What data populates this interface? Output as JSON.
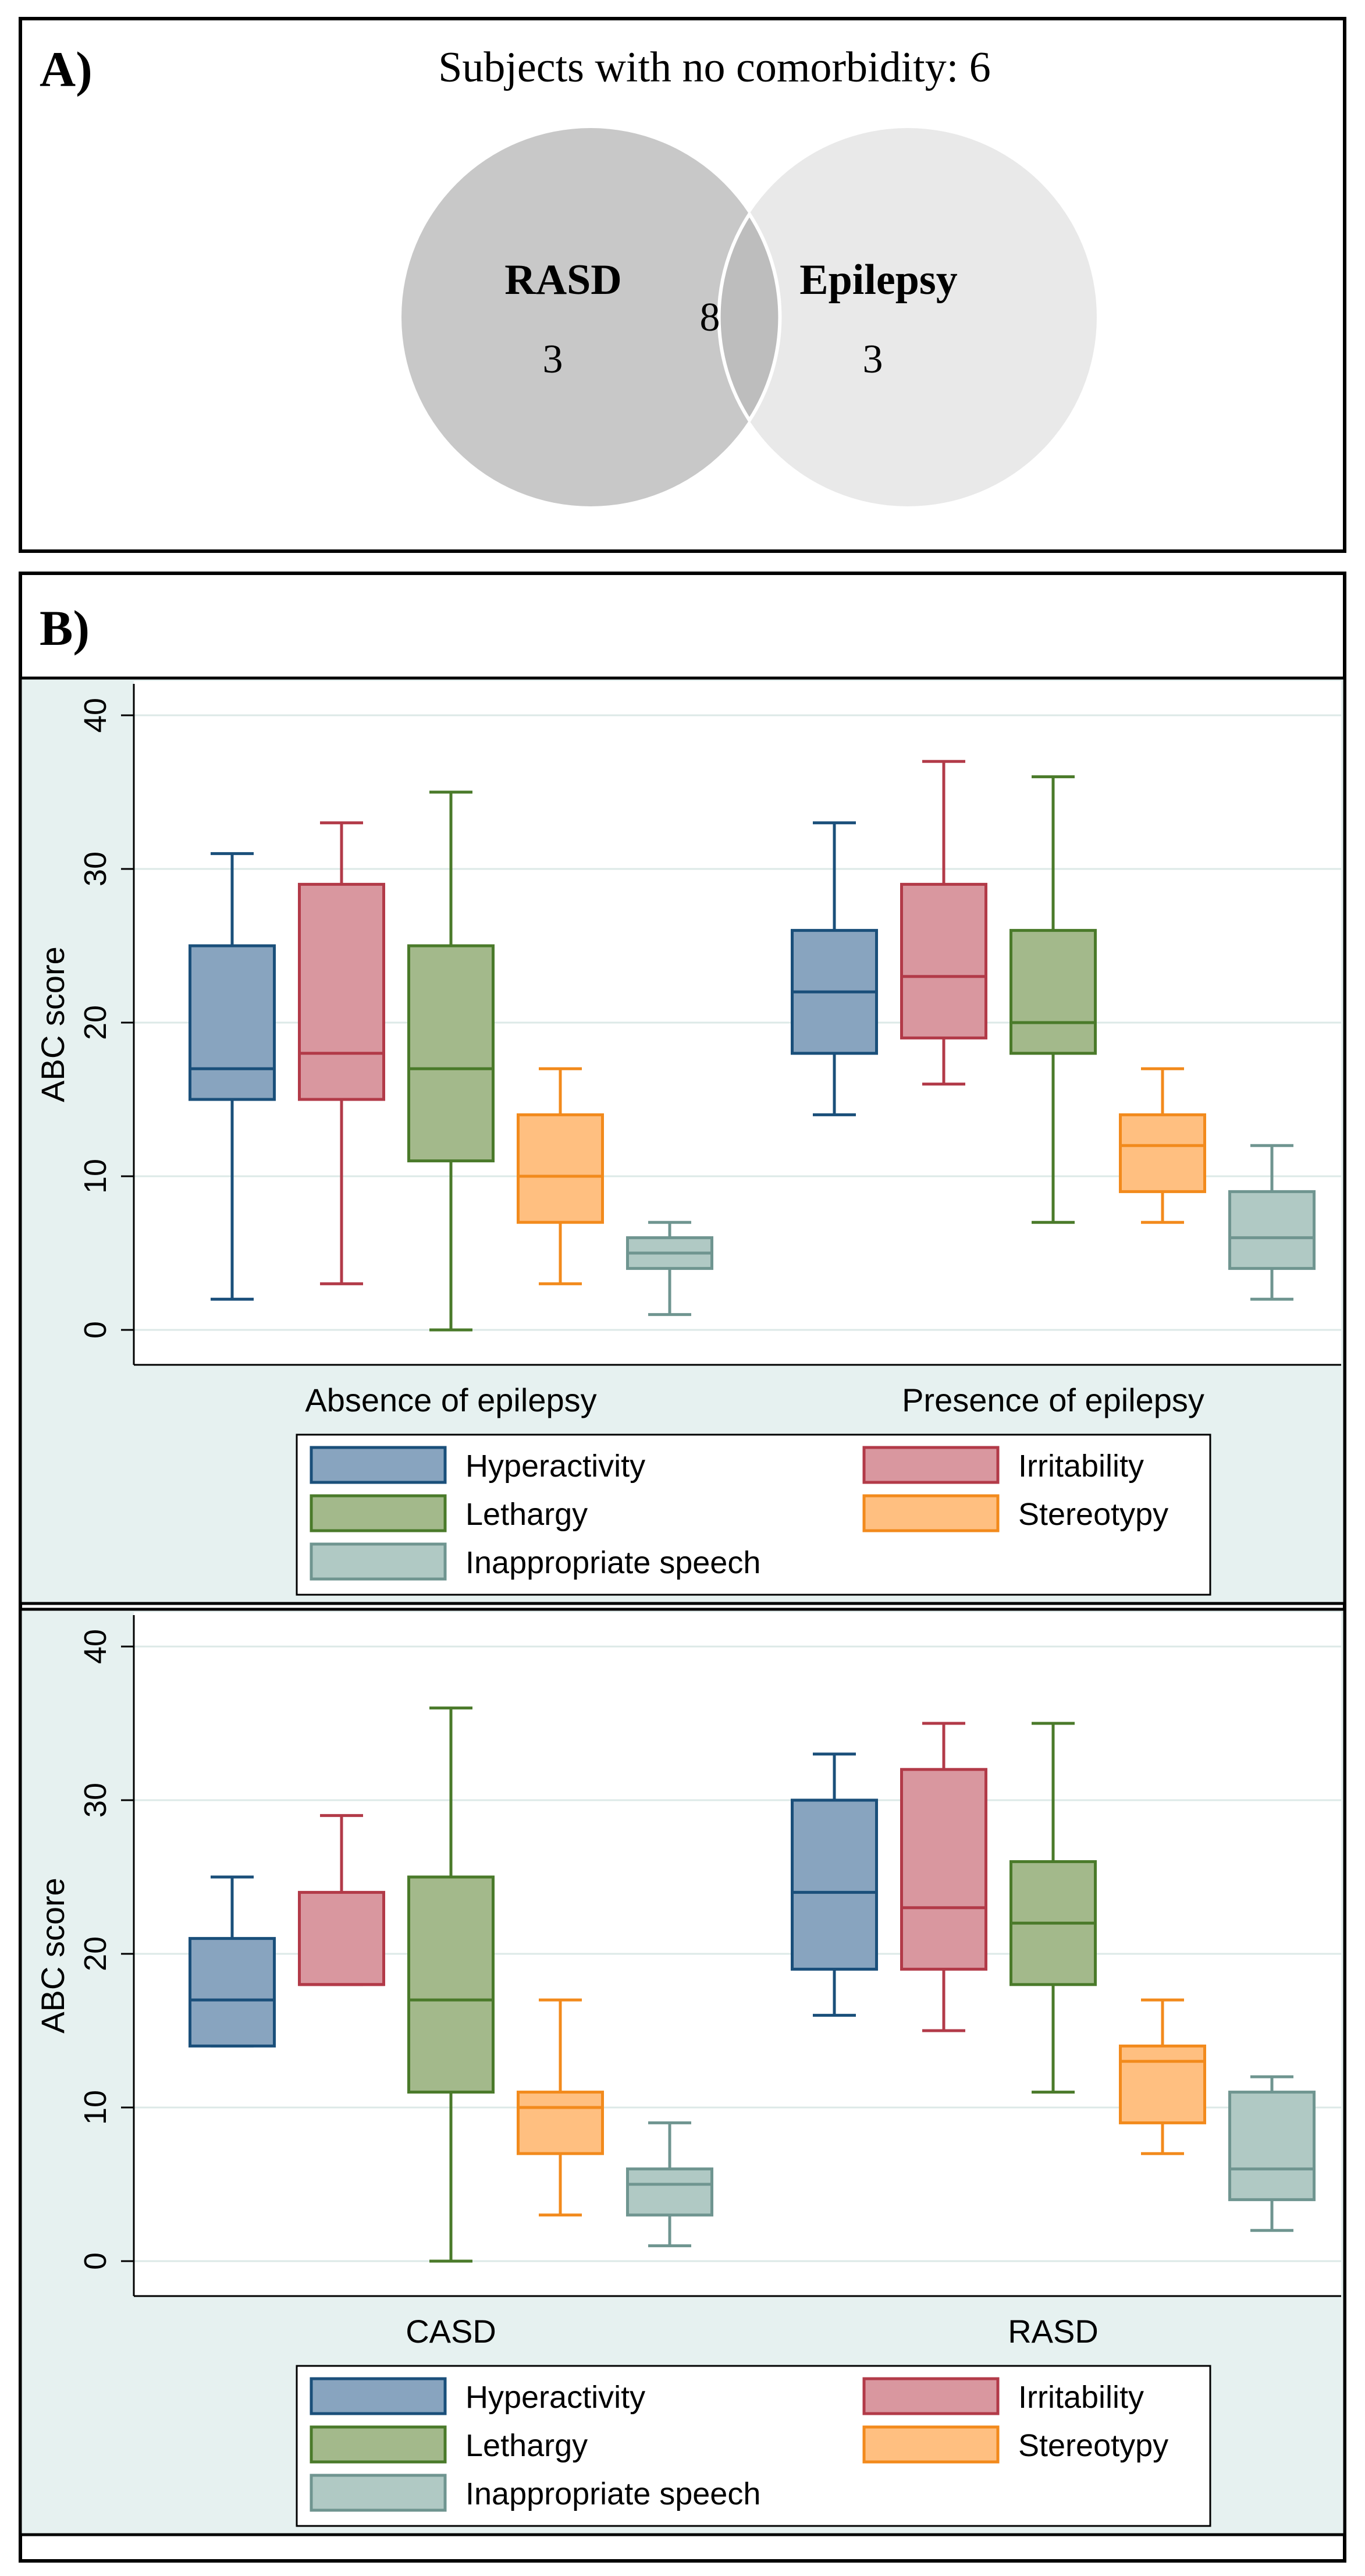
{
  "panel_a": {
    "label": "A)",
    "title": "Subjects with no comorbidity: 6",
    "sets": [
      {
        "name": "RASD",
        "only": "3",
        "color": "#c8c8c8"
      },
      {
        "name": "Epilepsy",
        "only": "3",
        "color": "#e9e9e9"
      }
    ],
    "overlap": "8"
  },
  "panel_b": {
    "label": "B)"
  },
  "legend": {
    "items": [
      {
        "name": "Hyperactivity",
        "fill": "#88a4bf",
        "stroke": "#1a4f7a"
      },
      {
        "name": "Irritability",
        "fill": "#d9979f",
        "stroke": "#b23a48"
      },
      {
        "name": "Lethargy",
        "fill": "#a3b98b",
        "stroke": "#4a7a2a"
      },
      {
        "name": "Stereotypy",
        "fill": "#ffbf80",
        "stroke": "#f28a1c"
      },
      {
        "name": "Inappropriate speech",
        "fill": "#b0c9c4",
        "stroke": "#6f9590"
      }
    ]
  },
  "chart_data": [
    {
      "type": "box",
      "ylabel": "ABC score",
      "ylim": [
        0,
        40
      ],
      "yticks": [
        "0",
        "10",
        "20",
        "30",
        "40"
      ],
      "categories": [
        "Absence of epilepsy",
        "Presence of epilepsy"
      ],
      "series": [
        {
          "name": "Hyperactivity",
          "boxes": [
            [
              2,
              15,
              17,
              25,
              31
            ],
            [
              14,
              18,
              22,
              26,
              33
            ]
          ]
        },
        {
          "name": "Irritability",
          "boxes": [
            [
              3,
              15,
              18,
              29,
              33
            ],
            [
              16,
              19,
              23,
              29,
              37
            ]
          ]
        },
        {
          "name": "Lethargy",
          "boxes": [
            [
              0,
              11,
              17,
              25,
              35
            ],
            [
              7,
              18,
              20,
              26,
              36
            ]
          ]
        },
        {
          "name": "Stereotypy",
          "boxes": [
            [
              3,
              7,
              10,
              14,
              17
            ],
            [
              7,
              9,
              12,
              14,
              17
            ]
          ]
        },
        {
          "name": "Inappropriate speech",
          "boxes": [
            [
              1,
              4,
              5,
              6,
              7
            ],
            [
              2,
              4,
              6,
              9,
              12
            ]
          ]
        }
      ]
    },
    {
      "type": "box",
      "ylabel": "ABC score",
      "ylim": [
        0,
        40
      ],
      "yticks": [
        "0",
        "10",
        "20",
        "30",
        "40"
      ],
      "categories": [
        "CASD",
        "RASD"
      ],
      "series": [
        {
          "name": "Hyperactivity",
          "boxes": [
            [
              14,
              14,
              17,
              21,
              25
            ],
            [
              16,
              19,
              24,
              30,
              33
            ]
          ]
        },
        {
          "name": "Irritability",
          "boxes": [
            [
              18,
              18,
              18,
              24,
              29
            ],
            [
              15,
              19,
              23,
              32,
              35
            ]
          ]
        },
        {
          "name": "Lethargy",
          "boxes": [
            [
              0,
              11,
              17,
              25,
              36
            ],
            [
              11,
              18,
              22,
              26,
              35
            ]
          ]
        },
        {
          "name": "Stereotypy",
          "boxes": [
            [
              3,
              7,
              10,
              11,
              17
            ],
            [
              7,
              9,
              13,
              14,
              17
            ]
          ]
        },
        {
          "name": "Inappropriate speech",
          "boxes": [
            [
              1,
              3,
              5,
              6,
              9
            ],
            [
              2,
              4,
              6,
              11,
              12
            ]
          ]
        }
      ]
    }
  ]
}
